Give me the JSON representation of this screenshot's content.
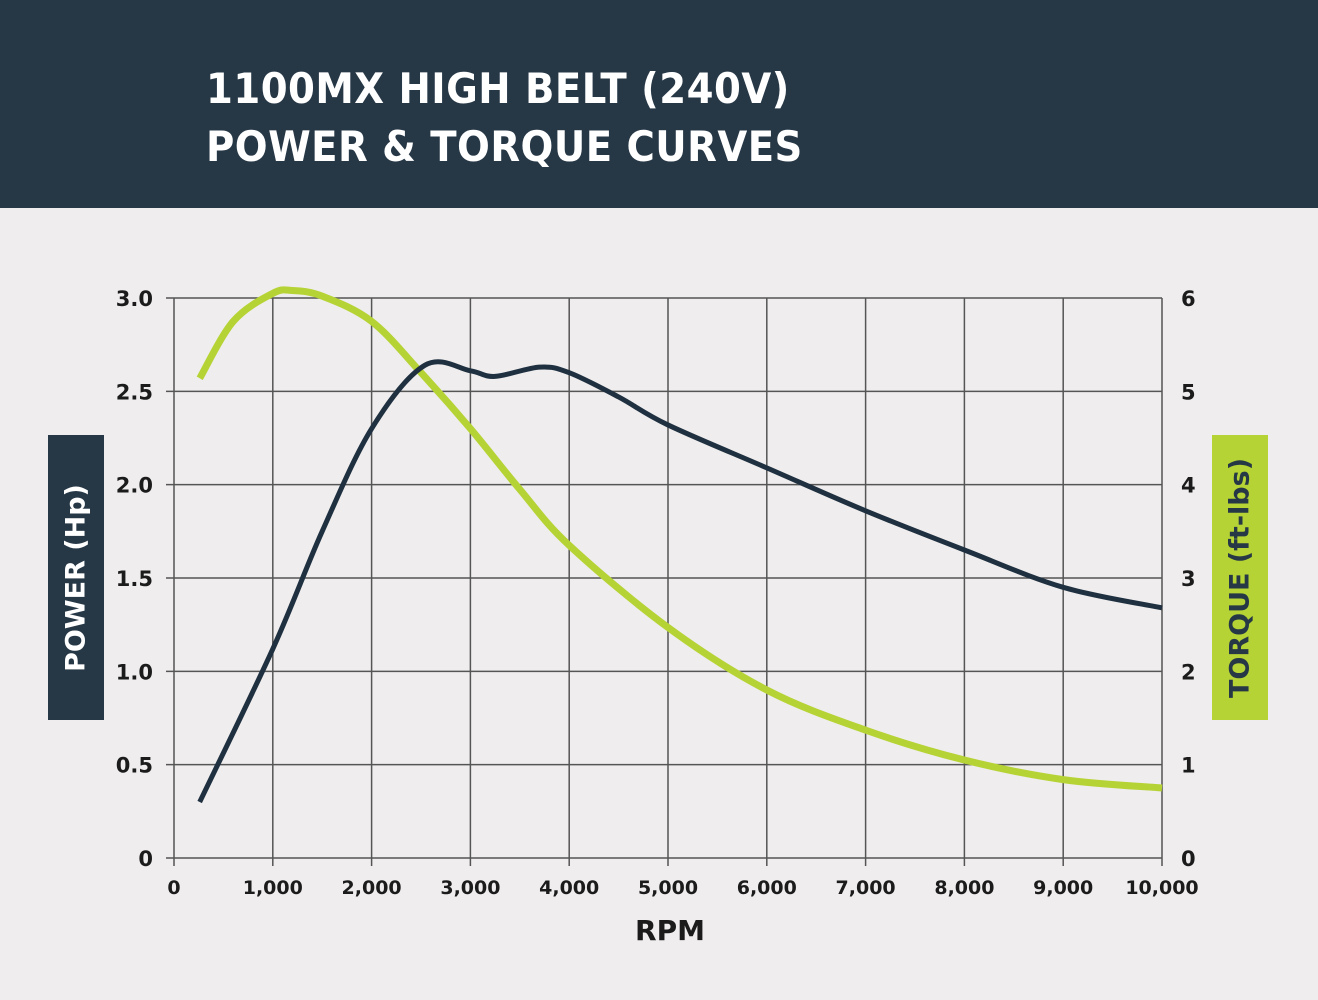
{
  "header": {
    "title_line1": "1100MX HIGH BELT (240V)",
    "title_line2": "POWER & TORQUE CURVES"
  },
  "axes": {
    "left_label": "POWER (Hp)",
    "right_label": "TORQUE (ft-lbs)",
    "x_label": "RPM",
    "left_ticks": [
      "0",
      "0.5",
      "1.0",
      "1.5",
      "2.0",
      "2.5",
      "3.0"
    ],
    "right_ticks": [
      "0",
      "1",
      "2",
      "3",
      "4",
      "5",
      "6"
    ],
    "x_ticks": [
      "0",
      "1,000",
      "2,000",
      "3,000",
      "4,000",
      "5,000",
      "6,000",
      "7,000",
      "8,000",
      "9,000",
      "10,000"
    ]
  },
  "colors": {
    "header_bg": "#263746",
    "background": "#efeded",
    "power": "#1f3040",
    "torque": "#b5d334",
    "grid": "#555555"
  },
  "chart_data": {
    "type": "line",
    "title": "1100MX HIGH BELT (240V) POWER & TORQUE CURVES",
    "xlabel": "RPM",
    "ylabel": "POWER (Hp)",
    "y2label": "TORQUE (ft-lbs)",
    "xlim": [
      0,
      10000
    ],
    "ylim": [
      0,
      3.0
    ],
    "y2lim": [
      0,
      6
    ],
    "grid": true,
    "legend": "axis labels colored by series (left dark = power, right green = torque)",
    "series": [
      {
        "name": "POWER (Hp)",
        "axis": "left",
        "color": "#1f3040",
        "x": [
          260,
          1000,
          1500,
          2000,
          2540,
          3000,
          3250,
          3700,
          4000,
          4500,
          5000,
          6000,
          7000,
          8000,
          9000,
          10000
        ],
        "y": [
          0.3,
          1.12,
          1.75,
          2.3,
          2.64,
          2.61,
          2.58,
          2.63,
          2.6,
          2.47,
          2.32,
          2.09,
          1.86,
          1.65,
          1.45,
          1.34
        ]
      },
      {
        "name": "TORQUE (ft-lbs)",
        "axis": "right",
        "color": "#b5d334",
        "x": [
          260,
          600,
          1000,
          1200,
          1500,
          2000,
          2500,
          3000,
          3500,
          4000,
          5000,
          6000,
          7000,
          8000,
          9000,
          10000
        ],
        "y": [
          5.14,
          5.75,
          6.05,
          6.08,
          6.02,
          5.75,
          5.2,
          4.6,
          3.95,
          3.35,
          2.47,
          1.8,
          1.37,
          1.05,
          0.84,
          0.75
        ]
      }
    ]
  }
}
